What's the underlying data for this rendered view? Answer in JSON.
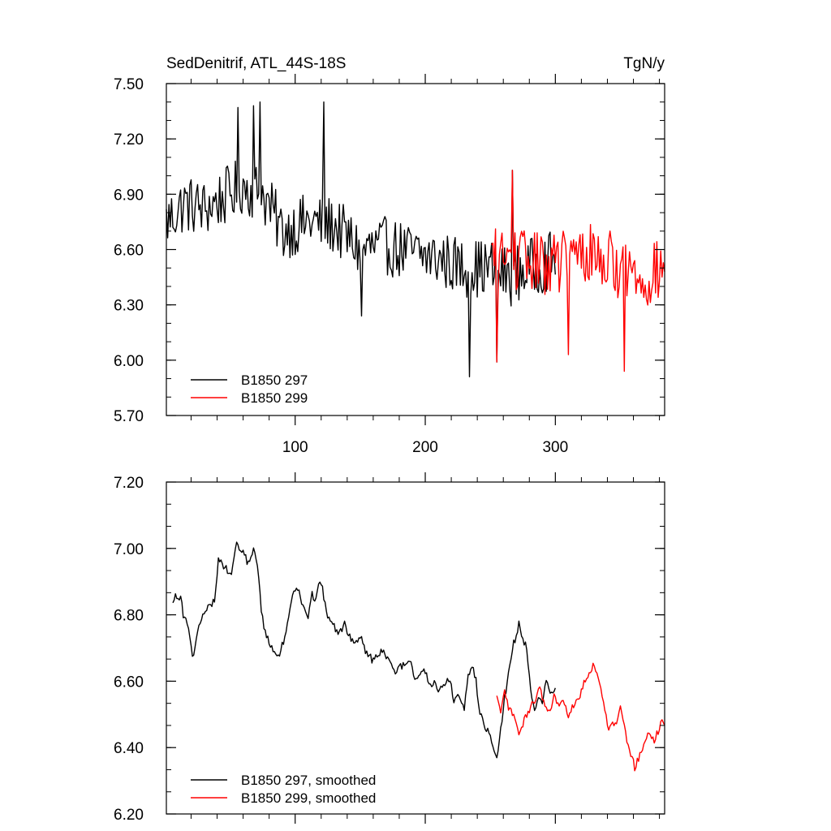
{
  "chart_data": [
    {
      "type": "line",
      "title_left": "SedDenitrif, ATL_44S-18S",
      "title_right": "TgN/y",
      "xlim": [
        1,
        384
      ],
      "ylim": [
        5.7,
        7.5
      ],
      "x_ticks": [
        100,
        200,
        300
      ],
      "x_tick_labels": [
        "100",
        "200",
        "300"
      ],
      "y_ticks": [
        5.7,
        6.0,
        6.3,
        6.6,
        6.9,
        7.2,
        7.5
      ],
      "y_tick_labels": [
        "5.70",
        "6.00",
        "6.30",
        "6.60",
        "6.90",
        "7.20",
        "7.50"
      ],
      "legend_position": "bottom-left",
      "series": [
        {
          "name": "B1850 297",
          "color": "#000000",
          "noise": 0.16,
          "x_start": 1,
          "x_end": 300,
          "points": [
            [
              1,
              6.75
            ],
            [
              15,
              6.85
            ],
            [
              30,
              6.82
            ],
            [
              45,
              6.88
            ],
            [
              60,
              6.95
            ],
            [
              75,
              6.9
            ],
            [
              90,
              6.7
            ],
            [
              110,
              6.75
            ],
            [
              130,
              6.73
            ],
            [
              150,
              6.6
            ],
            [
              170,
              6.62
            ],
            [
              190,
              6.58
            ],
            [
              210,
              6.55
            ],
            [
              230,
              6.5
            ],
            [
              250,
              6.5
            ],
            [
              265,
              6.45
            ],
            [
              280,
              6.5
            ],
            [
              300,
              6.55
            ]
          ]
        },
        {
          "name": "B1850 299",
          "color": "#ff0000",
          "noise": 0.17,
          "x_start": 251,
          "x_end": 384,
          "points": [
            [
              251,
              6.55
            ],
            [
              270,
              6.55
            ],
            [
              290,
              6.52
            ],
            [
              310,
              6.55
            ],
            [
              330,
              6.58
            ],
            [
              350,
              6.5
            ],
            [
              370,
              6.45
            ],
            [
              384,
              6.5
            ]
          ]
        }
      ],
      "peaks": [
        [
          56,
          7.37
        ],
        [
          68,
          7.38
        ],
        [
          73,
          7.4
        ],
        [
          122,
          7.4
        ],
        [
          234,
          5.91
        ],
        [
          255,
          5.99
        ],
        [
          267,
          7.03
        ],
        [
          353,
          5.94
        ],
        [
          310,
          6.03
        ],
        [
          151,
          6.24
        ]
      ]
    },
    {
      "type": "line",
      "xlim": [
        1,
        384
      ],
      "ylim": [
        6.2,
        7.2
      ],
      "x_ticks": [
        100,
        200,
        300
      ],
      "y_ticks": [
        6.2,
        6.4,
        6.6,
        6.8,
        7.0,
        7.2
      ],
      "y_tick_labels": [
        "6.20",
        "6.40",
        "6.60",
        "6.80",
        "7.00",
        "7.20"
      ],
      "legend_position": "bottom-left",
      "series": [
        {
          "name": "B1850 297, smoothed",
          "color": "#000000",
          "noise": 0.012,
          "x_start": 6,
          "x_end": 300,
          "points": [
            [
              6,
              6.83
            ],
            [
              8,
              6.87
            ],
            [
              10,
              6.85
            ],
            [
              12,
              6.86
            ],
            [
              14,
              6.8
            ],
            [
              16,
              6.8
            ],
            [
              19,
              6.73
            ],
            [
              21,
              6.68
            ],
            [
              23,
              6.7
            ],
            [
              26,
              6.77
            ],
            [
              30,
              6.8
            ],
            [
              33,
              6.82
            ],
            [
              38,
              6.84
            ],
            [
              41,
              6.97
            ],
            [
              45,
              6.95
            ],
            [
              49,
              6.93
            ],
            [
              51,
              6.91
            ],
            [
              53,
              6.98
            ],
            [
              55,
              7.01
            ],
            [
              58,
              7.0
            ],
            [
              61,
              6.99
            ],
            [
              63,
              6.95
            ],
            [
              65,
              6.97
            ],
            [
              68,
              7.0
            ],
            [
              71,
              6.95
            ],
            [
              74,
              6.82
            ],
            [
              76,
              6.75
            ],
            [
              80,
              6.72
            ],
            [
              84,
              6.69
            ],
            [
              87,
              6.67
            ],
            [
              92,
              6.73
            ],
            [
              96,
              6.82
            ],
            [
              100,
              6.88
            ],
            [
              103,
              6.87
            ],
            [
              106,
              6.82
            ],
            [
              110,
              6.8
            ],
            [
              113,
              6.86
            ],
            [
              116,
              6.85
            ],
            [
              118,
              6.9
            ],
            [
              121,
              6.88
            ],
            [
              124,
              6.8
            ],
            [
              128,
              6.78
            ],
            [
              133,
              6.74
            ],
            [
              138,
              6.77
            ],
            [
              143,
              6.73
            ],
            [
              148,
              6.72
            ],
            [
              150,
              6.74
            ],
            [
              153,
              6.7
            ],
            [
              157,
              6.68
            ],
            [
              160,
              6.66
            ],
            [
              163,
              6.68
            ],
            [
              168,
              6.69
            ],
            [
              171,
              6.67
            ],
            [
              174,
              6.65
            ],
            [
              177,
              6.62
            ],
            [
              181,
              6.65
            ],
            [
              185,
              6.64
            ],
            [
              188,
              6.67
            ],
            [
              192,
              6.6
            ],
            [
              196,
              6.62
            ],
            [
              200,
              6.63
            ],
            [
              204,
              6.58
            ],
            [
              207,
              6.6
            ],
            [
              210,
              6.56
            ],
            [
              213,
              6.58
            ],
            [
              216,
              6.6
            ],
            [
              219,
              6.61
            ],
            [
              222,
              6.54
            ],
            [
              226,
              6.56
            ],
            [
              230,
              6.52
            ],
            [
              233,
              6.62
            ],
            [
              236,
              6.65
            ],
            [
              239,
              6.6
            ],
            [
              242,
              6.5
            ],
            [
              245,
              6.47
            ],
            [
              249,
              6.45
            ],
            [
              253,
              6.4
            ],
            [
              255,
              6.37
            ],
            [
              258,
              6.45
            ],
            [
              261,
              6.55
            ],
            [
              264,
              6.62
            ],
            [
              267,
              6.7
            ],
            [
              270,
              6.74
            ],
            [
              272,
              6.77
            ],
            [
              275,
              6.73
            ],
            [
              278,
              6.7
            ],
            [
              280,
              6.62
            ],
            [
              282,
              6.55
            ],
            [
              284,
              6.5
            ],
            [
              287,
              6.55
            ],
            [
              290,
              6.53
            ],
            [
              293,
              6.6
            ],
            [
              296,
              6.56
            ],
            [
              300,
              6.58
            ]
          ]
        },
        {
          "name": "B1850 299, smoothed",
          "color": "#ff0000",
          "noise": 0.012,
          "x_start": 255,
          "x_end": 384,
          "points": [
            [
              255,
              6.55
            ],
            [
              258,
              6.5
            ],
            [
              261,
              6.57
            ],
            [
              264,
              6.52
            ],
            [
              267,
              6.5
            ],
            [
              270,
              6.48
            ],
            [
              272,
              6.43
            ],
            [
              275,
              6.47
            ],
            [
              278,
              6.5
            ],
            [
              281,
              6.52
            ],
            [
              285,
              6.55
            ],
            [
              288,
              6.58
            ],
            [
              292,
              6.52
            ],
            [
              296,
              6.5
            ],
            [
              299,
              6.55
            ],
            [
              303,
              6.52
            ],
            [
              307,
              6.54
            ],
            [
              310,
              6.5
            ],
            [
              314,
              6.53
            ],
            [
              318,
              6.55
            ],
            [
              322,
              6.6
            ],
            [
              326,
              6.62
            ],
            [
              329,
              6.65
            ],
            [
              332,
              6.62
            ],
            [
              335,
              6.58
            ],
            [
              338,
              6.52
            ],
            [
              341,
              6.45
            ],
            [
              344,
              6.47
            ],
            [
              347,
              6.48
            ],
            [
              350,
              6.52
            ],
            [
              352,
              6.48
            ],
            [
              355,
              6.42
            ],
            [
              358,
              6.38
            ],
            [
              361,
              6.34
            ],
            [
              364,
              6.37
            ],
            [
              367,
              6.4
            ],
            [
              370,
              6.43
            ],
            [
              373,
              6.44
            ],
            [
              376,
              6.42
            ],
            [
              379,
              6.45
            ],
            [
              382,
              6.48
            ],
            [
              384,
              6.46
            ]
          ]
        }
      ]
    }
  ]
}
